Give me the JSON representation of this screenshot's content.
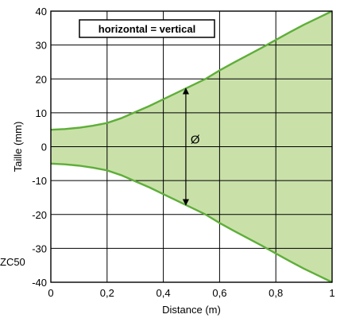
{
  "chart_data": {
    "type": "area",
    "title": "",
    "xlabel": "Distance (m)",
    "ylabel": "Taille (mm)",
    "xlim": [
      0,
      1
    ],
    "ylim": [
      -40,
      40
    ],
    "x_ticks": [
      0,
      0.2,
      0.4,
      0.6,
      0.8,
      1
    ],
    "x_tick_labels": [
      "0",
      "0,2",
      "0,4",
      "0,6",
      "0,8",
      "1"
    ],
    "y_ticks": [
      -40,
      -30,
      -20,
      -10,
      0,
      10,
      20,
      30,
      40
    ],
    "y_tick_labels": [
      "-40",
      "-30",
      "-20",
      "-10",
      "0",
      "10",
      "20",
      "30",
      "40"
    ],
    "grid": true,
    "legend": {
      "text": "horizontal = vertical",
      "placement": "top-left"
    },
    "annotation": "Ø",
    "annotation_x": 0.48,
    "corner_label": "ZC50",
    "fill_color": "#c9e1a9",
    "line_color": "#5fae3a",
    "series": [
      {
        "x": [
          0,
          0.05,
          0.1,
          0.15,
          0.2,
          0.25,
          0.3,
          0.35,
          0.4,
          0.45,
          0.5,
          0.55,
          0.6,
          0.65,
          0.7,
          0.75,
          0.8,
          0.85,
          0.9,
          0.95,
          1.0
        ],
        "upper": [
          5.0,
          5.2,
          5.6,
          6.2,
          7.0,
          8.4,
          10.2,
          12.0,
          14.0,
          16.0,
          18.0,
          20.0,
          22.5,
          24.8,
          27.0,
          29.2,
          31.5,
          33.8,
          36.0,
          38.0,
          40.0
        ],
        "lower": [
          -5.0,
          -5.2,
          -5.6,
          -6.2,
          -7.0,
          -8.4,
          -10.2,
          -12.0,
          -14.0,
          -16.0,
          -18.0,
          -20.0,
          -22.5,
          -24.8,
          -27.0,
          -29.2,
          -31.5,
          -33.8,
          -36.0,
          -38.0,
          -40.0
        ]
      }
    ]
  }
}
